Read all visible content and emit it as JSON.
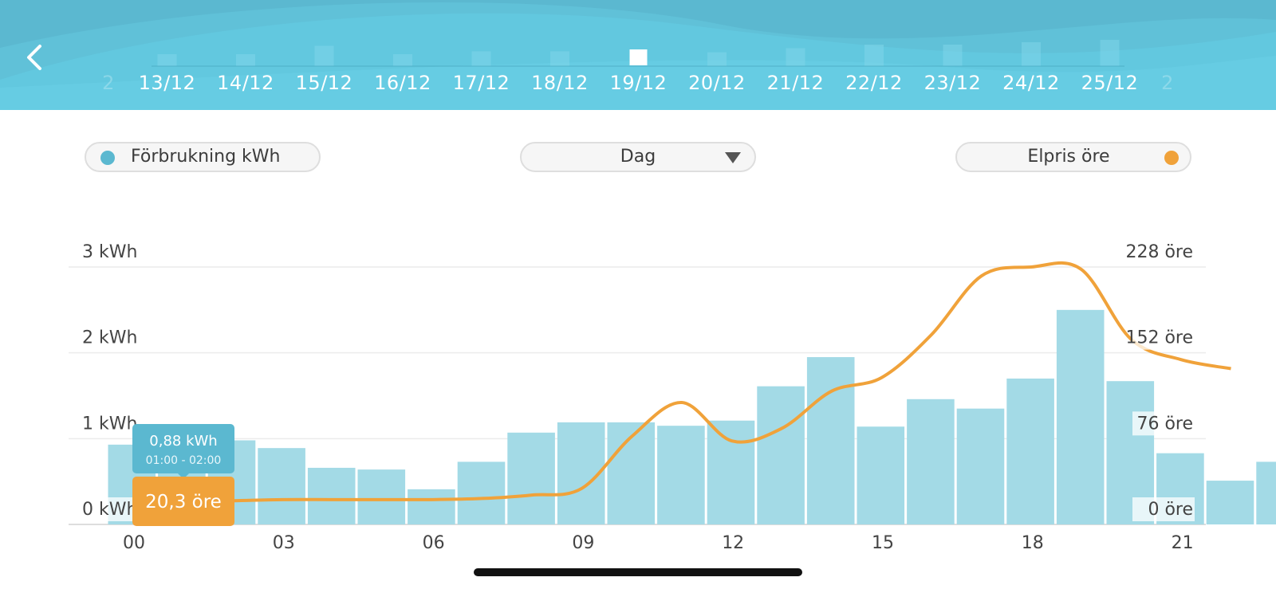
{
  "header": {
    "back_icon": "chevron-left-icon",
    "dates": [
      {
        "label": "2",
        "faded": true
      },
      {
        "label": "13/12"
      },
      {
        "label": "14/12"
      },
      {
        "label": "15/12"
      },
      {
        "label": "16/12"
      },
      {
        "label": "17/12"
      },
      {
        "label": "18/12"
      },
      {
        "label": "19/12",
        "selected": true
      },
      {
        "label": "20/12"
      },
      {
        "label": "21/12"
      },
      {
        "label": "22/12"
      },
      {
        "label": "23/12"
      },
      {
        "label": "24/12"
      },
      {
        "label": "25/12"
      },
      {
        "label": "2",
        "faded": true
      }
    ],
    "date_bar_levels": [
      0.12,
      0.5,
      0.5,
      0.85,
      0.5,
      0.62,
      0.62,
      0,
      0.58,
      0.75,
      0.9,
      0.9,
      1.0,
      1.1,
      0.2
    ]
  },
  "controls": {
    "consumption_legend": "Förbrukning kWh",
    "period_select": "Dag",
    "price_legend": "Elpris öre"
  },
  "colors": {
    "consumption": "#5bb8d0",
    "bars": "#a3dae6",
    "price": "#f0a23a",
    "header": "#5bb8d0"
  },
  "tooltip": {
    "kwh": "0,88 kWh",
    "time": "01:00 - 02:00",
    "price": "20,3 öre"
  },
  "chart_data": {
    "type": "bar",
    "x_ticks": [
      "00",
      "03",
      "06",
      "09",
      "12",
      "15",
      "18",
      "21"
    ],
    "left_axis": {
      "labels": [
        "3 kWh",
        "2 kWh",
        "1 kWh",
        "0 kWh"
      ],
      "range": [
        0,
        3
      ]
    },
    "right_axis": {
      "labels": [
        "228 öre",
        "152 öre",
        "76 öre",
        "0 öre"
      ],
      "range": [
        0,
        228
      ]
    },
    "series": [
      {
        "name": "Förbrukning kWh",
        "type": "bar",
        "hours": [
          0,
          1,
          2,
          3,
          4,
          5,
          6,
          7,
          8,
          9,
          10,
          11,
          12,
          13,
          14,
          15,
          16,
          17,
          18,
          19,
          20,
          21,
          22,
          23
        ],
        "values": [
          0.93,
          0.88,
          0.98,
          0.89,
          0.66,
          0.64,
          0.41,
          0.73,
          1.07,
          1.19,
          1.19,
          1.15,
          1.21,
          1.61,
          1.95,
          1.14,
          1.46,
          1.35,
          1.7,
          2.5,
          1.67,
          0.83,
          0.51,
          0.73
        ]
      },
      {
        "name": "Elpris öre",
        "type": "line",
        "hours": [
          0,
          1,
          2,
          3,
          4,
          5,
          6,
          7,
          8,
          9,
          10,
          11,
          12,
          13,
          14,
          15,
          16,
          17,
          18,
          19,
          20,
          21,
          22
        ],
        "values": [
          18,
          20.3,
          21,
          22,
          22,
          22,
          22,
          23,
          26,
          32,
          78,
          108,
          74,
          85,
          118,
          130,
          168,
          220,
          228,
          226,
          164,
          146,
          138
        ]
      }
    ]
  }
}
